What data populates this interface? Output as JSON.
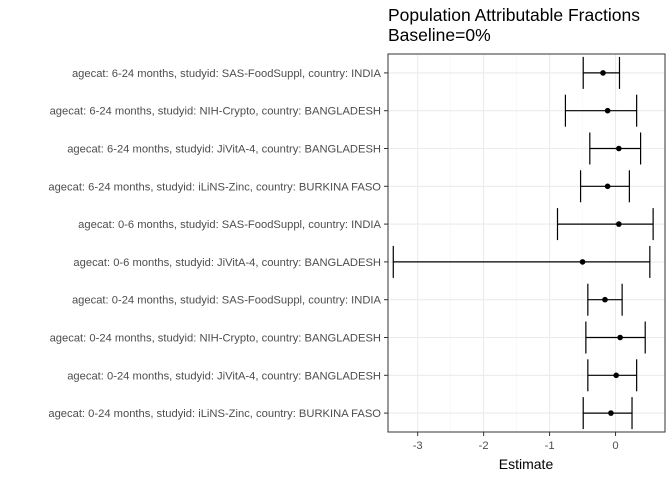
{
  "chart_data": {
    "type": "scatter",
    "subtype": "point-range (horizontal error bars)",
    "title": "Population Attributable Fractions",
    "subtitle": "Baseline=0%",
    "xlabel": "Estimate",
    "ylabel": "",
    "xlim": [
      -3.45,
      0.75
    ],
    "x_ticks": [
      -3,
      -2,
      -1,
      0
    ],
    "grid": true,
    "legend": "none",
    "colors": {
      "panel_border": "#333333",
      "grid_major": "#ebebeb",
      "grid_minor": "#f5f5f5",
      "mark": "#000000",
      "tick_text": "#4d4d4d"
    },
    "rows": [
      {
        "label": "agecat: 6-24 months, studyid: SAS-FoodSuppl, country: INDIA",
        "estimate": -0.19,
        "lower": -0.49,
        "upper": 0.06
      },
      {
        "label": "agecat: 6-24 months, studyid: NIH-Crypto, country: BANGLADESH",
        "estimate": -0.12,
        "lower": -0.76,
        "upper": 0.32
      },
      {
        "label": "agecat: 6-24 months, studyid: JiVitA-4, country: BANGLADESH",
        "estimate": 0.05,
        "lower": -0.39,
        "upper": 0.38
      },
      {
        "label": "agecat: 6-24 months, studyid: iLiNS-Zinc, country: BURKINA FASO",
        "estimate": -0.12,
        "lower": -0.53,
        "upper": 0.21
      },
      {
        "label": "agecat: 0-6 months, studyid: SAS-FoodSuppl, country: INDIA",
        "estimate": 0.05,
        "lower": -0.88,
        "upper": 0.57
      },
      {
        "label": "agecat: 0-6 months, studyid: JiVitA-4, country: BANGLADESH",
        "estimate": -0.5,
        "lower": -3.37,
        "upper": 0.52
      },
      {
        "label": "agecat: 0-24 months, studyid: SAS-FoodSuppl, country: INDIA",
        "estimate": -0.16,
        "lower": -0.42,
        "upper": 0.1
      },
      {
        "label": "agecat: 0-24 months, studyid: NIH-Crypto, country: BANGLADESH",
        "estimate": 0.07,
        "lower": -0.45,
        "upper": 0.45
      },
      {
        "label": "agecat: 0-24 months, studyid: JiVitA-4, country: BANGLADESH",
        "estimate": 0.01,
        "lower": -0.42,
        "upper": 0.32
      },
      {
        "label": "agecat: 0-24 months, studyid: iLiNS-Zinc, country: BURKINA FASO",
        "estimate": -0.07,
        "lower": -0.49,
        "upper": 0.25
      }
    ]
  }
}
